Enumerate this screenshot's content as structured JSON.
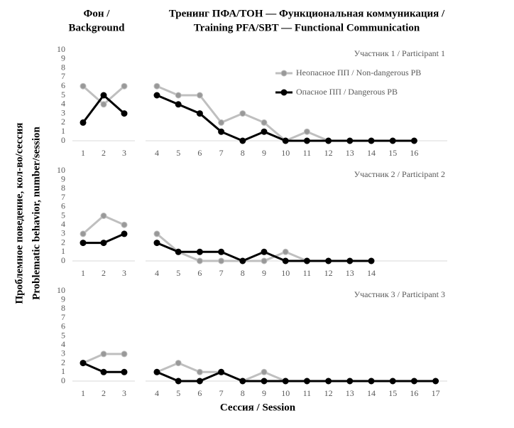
{
  "headers": {
    "baseline": [
      "Фон /",
      "Background"
    ],
    "treatment": [
      "Тренинг ПФА/ТОН — Функциональная коммуникация /",
      "Training PFA/SBT — Functional Communication"
    ]
  },
  "y_label": [
    "Проблемное поведение, кол-во/сессия",
    "Problematic behavior, number/session"
  ],
  "x_label": "Сессия / Session",
  "legend": {
    "position": "upper right",
    "series": [
      {
        "name": "Неопасное ПП / Non-dangerous PB",
        "color": "#bfbfbf",
        "marker": "#999999"
      },
      {
        "name": "Опасное ПП / Dangerous PB",
        "color": "#000000",
        "marker": "#000000"
      }
    ]
  },
  "chart_data": [
    {
      "type": "line",
      "title": "Участник 1 / Participant  1",
      "ylim": [
        0,
        10
      ],
      "yticks": [
        0,
        1,
        2,
        3,
        4,
        5,
        6,
        7,
        8,
        9,
        10
      ],
      "phases": [
        {
          "x": [
            1,
            2,
            3
          ],
          "series": [
            [
              6,
              4,
              6
            ],
            [
              2,
              5,
              3
            ]
          ]
        },
        {
          "x": [
            4,
            5,
            6,
            7,
            8,
            9,
            10,
            11,
            12,
            13,
            14,
            15,
            16
          ],
          "series": [
            [
              6,
              5,
              5,
              2,
              3,
              2,
              0,
              1,
              0,
              null,
              null,
              null,
              null
            ],
            [
              5,
              4,
              3,
              1,
              0,
              1,
              0,
              0,
              0,
              0,
              0,
              0,
              0
            ]
          ]
        }
      ]
    },
    {
      "type": "line",
      "title": "Участник 2 / Participant  2",
      "ylim": [
        0,
        10
      ],
      "yticks": [
        0,
        1,
        2,
        3,
        4,
        5,
        6,
        7,
        8,
        9,
        10
      ],
      "phases": [
        {
          "x": [
            1,
            2,
            3
          ],
          "series": [
            [
              3,
              5,
              4
            ],
            [
              2,
              2,
              3
            ]
          ]
        },
        {
          "x": [
            4,
            5,
            6,
            7,
            8,
            9,
            10,
            11,
            12,
            13,
            14
          ],
          "series": [
            [
              3,
              1,
              0,
              0,
              0,
              0,
              1,
              0,
              null,
              null,
              null
            ],
            [
              2,
              1,
              1,
              1,
              0,
              1,
              0,
              0,
              0,
              0,
              0
            ]
          ]
        }
      ]
    },
    {
      "type": "line",
      "title": "Участник 3 / Participant  3",
      "ylim": [
        0,
        10
      ],
      "yticks": [
        0,
        1,
        2,
        3,
        4,
        5,
        6,
        7,
        8,
        9,
        10
      ],
      "phases": [
        {
          "x": [
            1,
            2,
            3
          ],
          "series": [
            [
              2,
              3,
              3
            ],
            [
              2,
              1,
              1
            ]
          ]
        },
        {
          "x": [
            4,
            5,
            6,
            7,
            8,
            9,
            10,
            11,
            12,
            13,
            14,
            15,
            16,
            17
          ],
          "series": [
            [
              1,
              2,
              1,
              1,
              0,
              1,
              0,
              null,
              null,
              null,
              null,
              null,
              null,
              null
            ],
            [
              1,
              0,
              0,
              1,
              0,
              0,
              0,
              0,
              0,
              0,
              0,
              0,
              0,
              0
            ]
          ]
        }
      ]
    }
  ]
}
